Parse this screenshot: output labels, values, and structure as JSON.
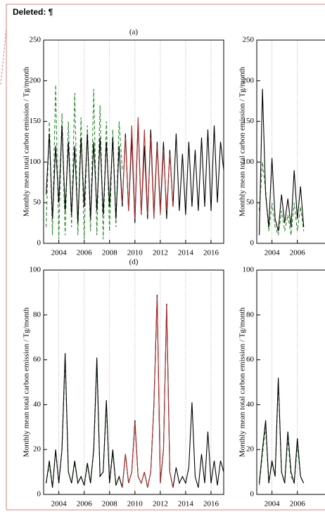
{
  "label": "Deleted: ¶",
  "chart_data": [
    {
      "type": "line",
      "title": "(a)",
      "ylabel": "Monthly mean total carbon emission / Tg/month",
      "xlim": [
        2002.8,
        2017.0
      ],
      "ylim": [
        0,
        250
      ],
      "xticks": [
        2004,
        2006,
        2008,
        2010,
        2012,
        2014,
        2016
      ],
      "yticks": [
        0,
        50,
        100,
        150,
        200,
        250
      ],
      "grid": true,
      "series": [
        {
          "color": "#2e8b2e",
          "dash": true,
          "x": [
            2003,
            2003.25,
            2003.5,
            2003.75,
            2004,
            2004.25,
            2004.5,
            2004.75,
            2005,
            2005.25,
            2005.5,
            2005.75,
            2006,
            2006.25,
            2006.5,
            2006.75,
            2007,
            2007.25,
            2007.5,
            2007.75,
            2008,
            2008.25,
            2008.5,
            2008.75,
            2009
          ],
          "values": [
            20,
            150,
            10,
            195,
            5,
            160,
            10,
            150,
            20,
            185,
            10,
            155,
            5,
            145,
            15,
            190,
            10,
            170,
            5,
            150,
            15,
            140,
            20,
            150,
            90
          ]
        },
        {
          "color": "#000000",
          "dash": false,
          "x": [
            2003,
            2003.25,
            2003.5,
            2003.75,
            2004,
            2004.25,
            2004.5,
            2004.75,
            2005,
            2005.25,
            2005.5,
            2005.75,
            2006,
            2006.25,
            2006.5,
            2006.75,
            2007,
            2007.25,
            2007.5,
            2007.75,
            2008,
            2008.25,
            2008.5,
            2008.75,
            2009,
            2009.25,
            2009.5,
            2009.75,
            2010,
            2010.25,
            2010.5,
            2010.75,
            2011,
            2011.25,
            2011.5,
            2011.75,
            2012,
            2012.25,
            2012.5,
            2012.75,
            2013,
            2013.25,
            2013.5,
            2013.75,
            2014,
            2014.25,
            2014.5,
            2014.75,
            2015,
            2015.25,
            2015.5,
            2015.75,
            2016,
            2016.25,
            2016.5,
            2016.75,
            2017
          ],
          "values": [
            60,
            135,
            30,
            120,
            50,
            145,
            40,
            125,
            35,
            120,
            25,
            130,
            45,
            135,
            30,
            125,
            40,
            130,
            35,
            125,
            45,
            130,
            30,
            120,
            45,
            135,
            40,
            130,
            25,
            150,
            35,
            120,
            30,
            140,
            35,
            125,
            40,
            125,
            30,
            115,
            45,
            135,
            40,
            110,
            35,
            125,
            45,
            115,
            40,
            130,
            45,
            140,
            40,
            145,
            50,
            125,
            90
          ]
        },
        {
          "color": "#b03030",
          "dash": false,
          "x": [
            2009,
            2009.25,
            2009.5,
            2009.75,
            2010,
            2010.25,
            2010.5,
            2010.75,
            2011,
            2011.25,
            2011.5,
            2011.75,
            2012,
            2012.25,
            2012.5,
            2012.75,
            2013
          ],
          "values": [
            50,
            130,
            40,
            145,
            30,
            155,
            35,
            140,
            35,
            130,
            30,
            120,
            35,
            115,
            40,
            110,
            45
          ]
        }
      ]
    },
    {
      "type": "line",
      "ylabel": "Monthly mean total carbon emission / Tg/month",
      "xlim": [
        2002.8,
        2017.0
      ],
      "ylim": [
        0,
        250
      ],
      "xticks": [
        2004,
        2006
      ],
      "yticks": [
        0,
        50,
        100,
        150,
        200,
        250
      ],
      "grid": true,
      "series": [
        {
          "color": "#2e8b2e",
          "dash": true,
          "x": [
            2003,
            2003.25,
            2003.5,
            2003.75,
            2004,
            2004.25,
            2004.5,
            2004.75,
            2005,
            2005.25,
            2005.5,
            2005.75,
            2006,
            2006.25,
            2006.5
          ],
          "values": [
            40,
            100,
            65,
            15,
            50,
            20,
            10,
            40,
            15,
            35,
            10,
            50,
            15,
            45,
            15
          ]
        },
        {
          "color": "#000000",
          "dash": false,
          "x": [
            2003,
            2003.25,
            2003.5,
            2003.75,
            2004,
            2004.25,
            2004.5,
            2004.75,
            2005,
            2005.25,
            2005.5,
            2005.75,
            2006,
            2006.25,
            2006.5
          ],
          "values": [
            10,
            190,
            60,
            20,
            105,
            30,
            15,
            60,
            25,
            55,
            20,
            90,
            30,
            70,
            20
          ]
        }
      ]
    },
    {
      "type": "line",
      "title": "(d)",
      "ylabel": "Monthly mean total carbon emission / Tg/month",
      "xlim": [
        2002.8,
        2017.0
      ],
      "ylim": [
        0,
        100
      ],
      "xticks": [
        2004,
        2006,
        2008,
        2010,
        2012,
        2014,
        2016
      ],
      "yticks": [
        0,
        20,
        40,
        60,
        80,
        100
      ],
      "grid": true,
      "series": [
        {
          "color": "#2e8b2e",
          "dash": true,
          "x": [
            2003,
            2003.25,
            2003.5,
            2003.75,
            2004,
            2004.25,
            2004.5,
            2004.75,
            2005,
            2005.25,
            2005.5,
            2005.75,
            2006,
            2006.25,
            2006.5,
            2006.75,
            2007,
            2007.25,
            2007.5,
            2007.75,
            2008,
            2008.25,
            2008.5,
            2008.75,
            2009
          ],
          "values": [
            5,
            13,
            3,
            19,
            5,
            20,
            60,
            10,
            5,
            14,
            5,
            8,
            4,
            13,
            5,
            19,
            58,
            8,
            10,
            40,
            5,
            18,
            4,
            8,
            3
          ]
        },
        {
          "color": "#000000",
          "dash": false,
          "x": [
            2003,
            2003.25,
            2003.5,
            2003.75,
            2004,
            2004.25,
            2004.5,
            2004.75,
            2005,
            2005.25,
            2005.5,
            2005.75,
            2006,
            2006.25,
            2006.5,
            2006.75,
            2007,
            2007.25,
            2007.5,
            2007.75,
            2008,
            2008.25,
            2008.5,
            2008.75,
            2009,
            2009.25,
            2009.5,
            2009.75,
            2010,
            2010.25,
            2010.5,
            2010.75,
            2011,
            2011.25,
            2011.5,
            2011.75,
            2012,
            2012.25,
            2012.5,
            2012.75,
            2013,
            2013.25,
            2013.5,
            2013.75,
            2014,
            2014.25,
            2014.5,
            2014.75,
            2015,
            2015.25,
            2015.5,
            2015.75,
            2016,
            2016.25,
            2016.5,
            2016.75,
            2017
          ],
          "values": [
            5,
            15,
            3,
            20,
            5,
            20,
            63,
            10,
            5,
            15,
            5,
            8,
            4,
            14,
            5,
            20,
            61,
            8,
            10,
            42,
            5,
            20,
            4,
            8,
            3,
            18,
            5,
            10,
            33,
            8,
            5,
            10,
            3,
            10,
            40,
            89,
            5,
            20,
            85,
            10,
            3,
            12,
            5,
            8,
            5,
            12,
            41,
            8,
            3,
            18,
            5,
            28,
            5,
            15,
            4,
            15,
            10
          ]
        },
        {
          "color": "#b03030",
          "dash": false,
          "x": [
            2009,
            2009.25,
            2009.5,
            2009.75,
            2010,
            2010.25,
            2010.5,
            2010.75,
            2011,
            2011.25,
            2011.5,
            2011.75,
            2012,
            2012.25,
            2012.5,
            2012.75,
            2013
          ],
          "values": [
            3,
            18,
            5,
            10,
            32,
            8,
            5,
            10,
            3,
            10,
            40,
            88,
            5,
            20,
            84,
            10,
            3
          ]
        }
      ]
    },
    {
      "type": "line",
      "ylabel": "Monthly mean total carbon emission / Tg/month",
      "xlim": [
        2002.8,
        2017.0
      ],
      "ylim": [
        0,
        100
      ],
      "xticks": [
        2004,
        2006
      ],
      "yticks": [
        0,
        20,
        40,
        60,
        80,
        100
      ],
      "grid": true,
      "series": [
        {
          "color": "#2e8b2e",
          "dash": true,
          "x": [
            2003,
            2003.25,
            2003.5,
            2003.75,
            2004,
            2004.25,
            2004.5,
            2004.75,
            2005,
            2005.25,
            2005.5,
            2005.75,
            2006,
            2006.25,
            2006.5
          ],
          "values": [
            4,
            18,
            30,
            5,
            14,
            8,
            50,
            10,
            5,
            25,
            8,
            5,
            22,
            8,
            5
          ]
        },
        {
          "color": "#000000",
          "dash": false,
          "x": [
            2003,
            2003.25,
            2003.5,
            2003.75,
            2004,
            2004.25,
            2004.5,
            2004.75,
            2005,
            2005.25,
            2005.5,
            2005.75,
            2006,
            2006.25,
            2006.5
          ],
          "values": [
            5,
            20,
            33,
            5,
            15,
            8,
            52,
            10,
            5,
            28,
            10,
            5,
            25,
            8,
            5
          ]
        }
      ]
    }
  ]
}
